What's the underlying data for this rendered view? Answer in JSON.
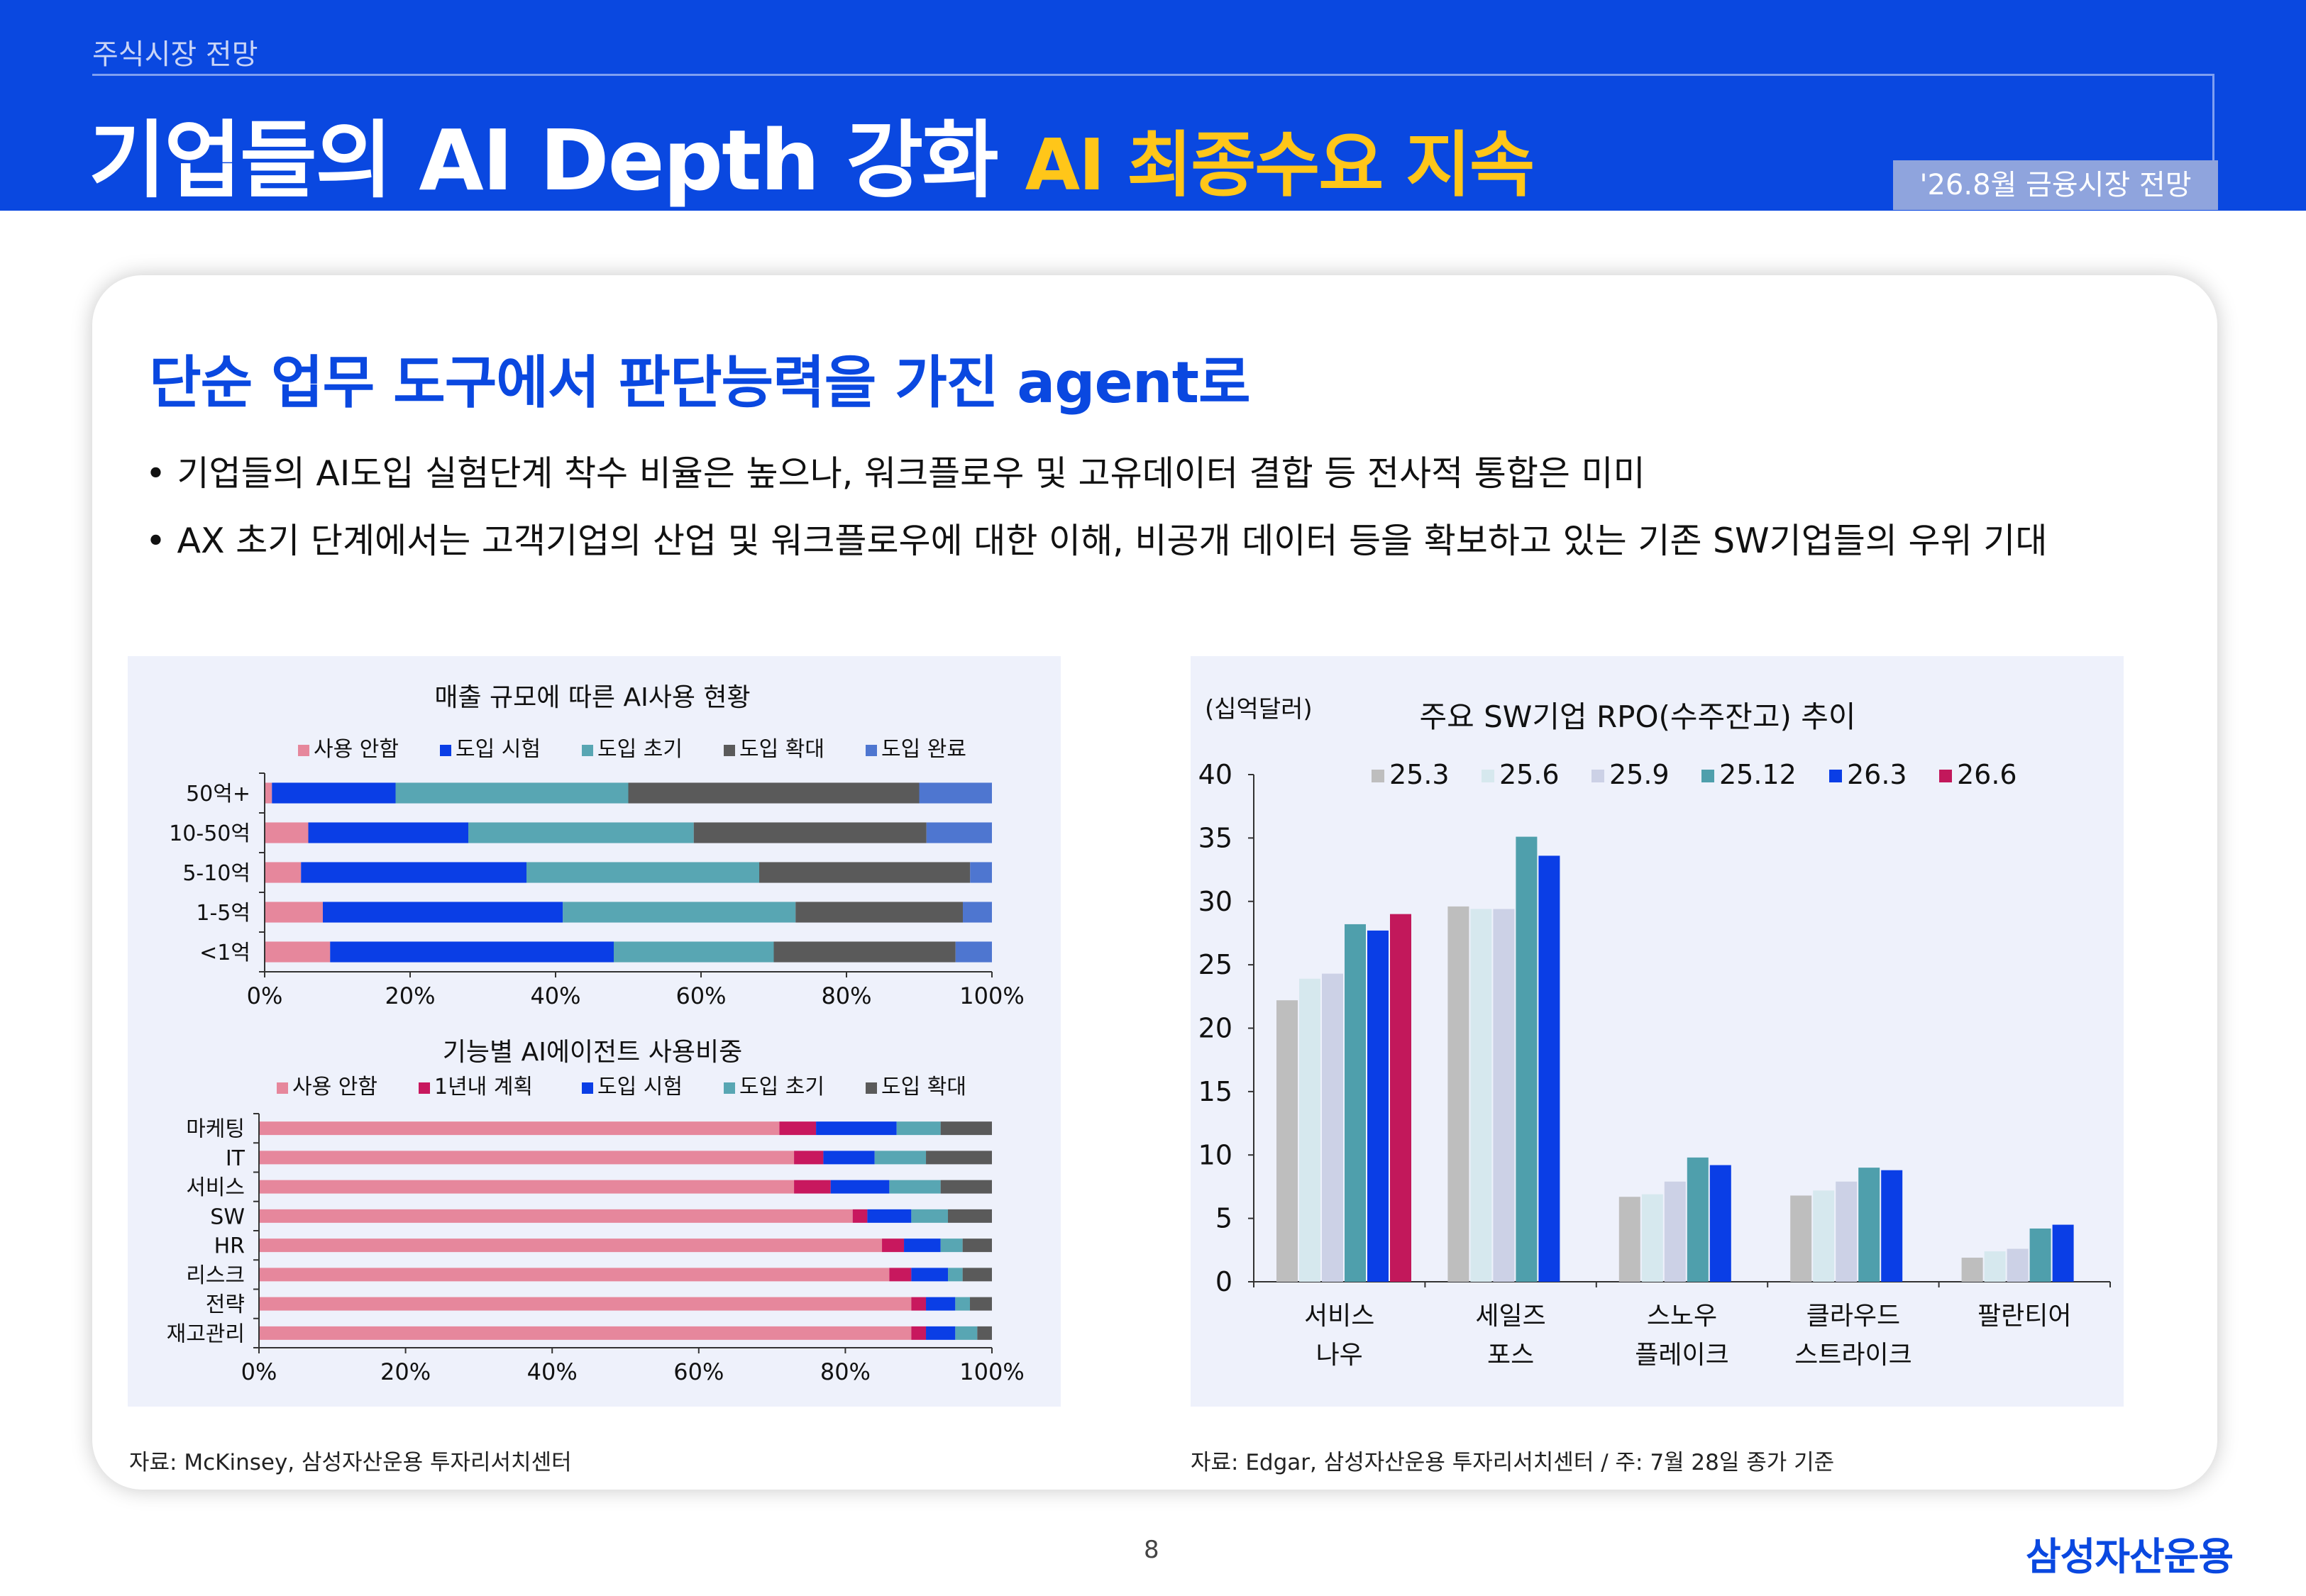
{
  "header": {
    "section": "주식시장 전망",
    "title_main": "기업들의 AI Depth 강화",
    "title_accent": "AI 최종수요 지속",
    "badge": "'26.8월 금융시장 전망"
  },
  "content": {
    "subtitle": "단순 업무 도구에서 판단능력을 가진 agent로",
    "bullets": [
      "• 기업들의 AI도입 실험단계 착수 비율은 높으나, 워크플로우 및 고유데이터 결합 등 전사적 통합은 미미",
      "• AX 초기 단계에서는 고객기업의 산업 및 워크플로우에 대한 이해, 비공개 데이터 등을 확보하고 있는 기존 SW기업들의 우위 기대"
    ]
  },
  "colors": {
    "brand": "#0a48e0",
    "accent": "#ffc619"
  },
  "chart_data": [
    {
      "type": "bar",
      "orientation": "horizontal-stacked",
      "title": "매출 규모에 따른 AI사용 현황",
      "categories": [
        "50억+",
        "10-50억",
        "5-10억",
        "1-5억",
        "<1억"
      ],
      "xlim": [
        0,
        100
      ],
      "xticks": [
        "0%",
        "20%",
        "40%",
        "60%",
        "80%",
        "100%"
      ],
      "legend": "top",
      "series": [
        {
          "name": "사용 안함",
          "color": "#e6879c",
          "values": [
            1,
            6,
            5,
            8,
            9
          ]
        },
        {
          "name": "도입 시험",
          "color": "#0a3ee6",
          "values": [
            17,
            22,
            31,
            33,
            39
          ]
        },
        {
          "name": "도입 초기",
          "color": "#58a6b3",
          "values": [
            32,
            31,
            32,
            32,
            22
          ]
        },
        {
          "name": "도입 확대",
          "color": "#5a5a5a",
          "values": [
            40,
            32,
            29,
            23,
            25
          ]
        },
        {
          "name": "도입 완료",
          "color": "#4e76d0",
          "values": [
            10,
            9,
            3,
            4,
            5
          ]
        }
      ]
    },
    {
      "type": "bar",
      "orientation": "horizontal-stacked",
      "title": "기능별 AI에이전트 사용비중",
      "categories": [
        "마케팅",
        "IT",
        "서비스",
        "SW",
        "HR",
        "리스크",
        "전략",
        "재고관리"
      ],
      "xlim": [
        0,
        100
      ],
      "xticks": [
        "0%",
        "20%",
        "40%",
        "60%",
        "80%",
        "100%"
      ],
      "legend": "top",
      "series": [
        {
          "name": "사용 안함",
          "color": "#e6879c",
          "values": [
            71,
            73,
            73,
            81,
            85,
            86,
            89,
            89
          ]
        },
        {
          "name": "1년내 계획",
          "color": "#c8185e",
          "values": [
            5,
            4,
            5,
            2,
            3,
            3,
            2,
            2
          ]
        },
        {
          "name": "도입 시험",
          "color": "#0a3ee6",
          "values": [
            11,
            7,
            8,
            6,
            5,
            5,
            4,
            4
          ]
        },
        {
          "name": "도입 초기",
          "color": "#58a6b3",
          "values": [
            6,
            7,
            7,
            5,
            3,
            2,
            2,
            3
          ]
        },
        {
          "name": "도입 확대",
          "color": "#5a5a5a",
          "values": [
            7,
            9,
            7,
            6,
            4,
            4,
            3,
            2
          ]
        }
      ]
    },
    {
      "type": "bar",
      "orientation": "vertical-grouped",
      "title": "주요 SW기업 RPO(수주잔고) 추이",
      "unit_label": "(십억달러)",
      "categories": [
        [
          "서비스",
          "나우"
        ],
        [
          "세일즈",
          "포스"
        ],
        [
          "스노우",
          "플레이크"
        ],
        [
          "클라우드",
          "스트라이크"
        ],
        [
          "팔란티어"
        ]
      ],
      "ylim": [
        0,
        40
      ],
      "yticks": [
        0,
        5,
        10,
        15,
        20,
        25,
        30,
        35,
        40
      ],
      "legend": "top",
      "series": [
        {
          "name": "25.3",
          "color": "#bebebe",
          "values": [
            22.2,
            29.6,
            6.7,
            6.8,
            1.9
          ]
        },
        {
          "name": "25.6",
          "color": "#d6e8ee",
          "values": [
            23.9,
            29.4,
            6.9,
            7.2,
            2.4
          ]
        },
        {
          "name": "25.9",
          "color": "#ccd1e6",
          "values": [
            24.3,
            29.4,
            7.9,
            7.9,
            2.6
          ]
        },
        {
          "name": "25.12",
          "color": "#4f9fac",
          "values": [
            28.2,
            35.1,
            9.8,
            9.0,
            4.2
          ]
        },
        {
          "name": "26.3",
          "color": "#0a3ee6",
          "values": [
            27.7,
            33.6,
            9.2,
            8.8,
            4.5
          ]
        },
        {
          "name": "26.6",
          "color": "#c2185b",
          "values": [
            29.0,
            null,
            null,
            null,
            null
          ]
        }
      ]
    }
  ],
  "sources": {
    "left": "자료: McKinsey, 삼성자산운용 투자리서치센터",
    "right": "자료: Edgar, 삼성자산운용 투자리서치센터 / 주: 7월 28일 종가 기준"
  },
  "footer": {
    "page": "8",
    "logo": "삼성자산운용"
  }
}
